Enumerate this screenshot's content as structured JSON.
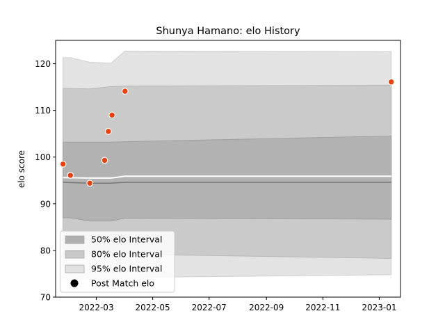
{
  "chart_data": {
    "type": "scatter",
    "title": "Shunya Hamano: elo History",
    "xlabel": "",
    "ylabel": "elo score",
    "xlim": [
      "2022-01-16",
      "2023-01-24"
    ],
    "ylim": [
      70,
      125
    ],
    "x_ticks": [
      "2022-03",
      "2022-05",
      "2022-07",
      "2022-09",
      "2022-11",
      "2023-01"
    ],
    "y_ticks": [
      70,
      80,
      90,
      100,
      110,
      120
    ],
    "grid": false,
    "legend_placement": "lower-left",
    "legend": [
      {
        "label": "50% elo Interval",
        "color": "#b0b0b0"
      },
      {
        "label": "80% elo Interval",
        "color": "#c8c8c8"
      },
      {
        "label": "95% elo Interval",
        "color": "#e2e2e2"
      },
      {
        "label": "Post Match elo",
        "color": "#000000"
      }
    ],
    "bands": {
      "dates": [
        "2022-01-24",
        "2022-02-01",
        "2022-02-22",
        "2022-03-17",
        "2022-04-01",
        "2023-01-14"
      ],
      "p95": {
        "lower": [
          74.0,
          74.2,
          73.7,
          73.7,
          74.2,
          74.8
        ],
        "upper": [
          121.3,
          121.3,
          120.3,
          120.1,
          122.7,
          122.6
        ]
      },
      "p80": {
        "lower": [
          79.0,
          79.1,
          79.0,
          79.0,
          79.2,
          78.3
        ],
        "upper": [
          114.7,
          114.7,
          114.6,
          115.1,
          115.2,
          115.4
        ]
      },
      "p50": {
        "lower": [
          87.0,
          87.0,
          86.3,
          86.3,
          86.9,
          86.7
        ],
        "upper": [
          103.2,
          103.2,
          103.2,
          103.2,
          103.3,
          104.5
        ]
      }
    },
    "series": [
      {
        "color": "#ffffff",
        "x": [
          "2022-01-24",
          "2022-02-22",
          "2022-03-17",
          "2022-04-01",
          "2023-01-14"
        ],
        "y": [
          95.6,
          95.5,
          95.5,
          95.9,
          95.9
        ]
      },
      {
        "color": "#777777",
        "x": [
          "2022-01-24",
          "2022-02-22",
          "2022-03-17",
          "2022-04-01",
          "2023-01-14"
        ],
        "y": [
          94.6,
          94.4,
          94.4,
          94.6,
          94.6
        ]
      }
    ],
    "points": {
      "color": "#e8410f",
      "x": [
        "2022-01-24",
        "2022-02-01",
        "2022-02-22",
        "2022-03-10",
        "2022-03-14",
        "2022-03-18",
        "2022-04-01",
        "2023-01-14"
      ],
      "y": [
        98.5,
        96.1,
        94.4,
        99.3,
        105.5,
        109.0,
        114.1,
        116.1
      ]
    }
  }
}
